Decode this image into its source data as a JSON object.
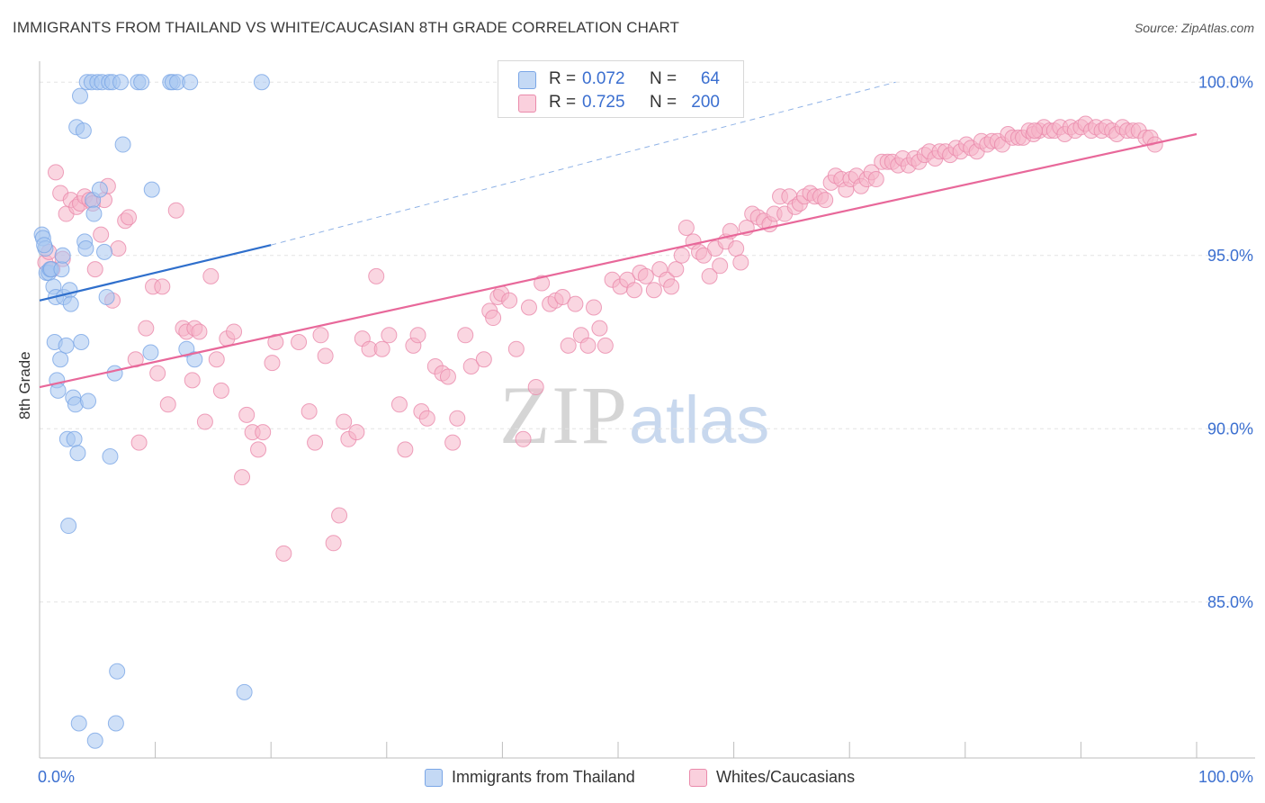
{
  "header": {
    "title": "IMMIGRANTS FROM THAILAND VS WHITE/CAUCASIAN 8TH GRADE CORRELATION CHART",
    "source": "Source: ZipAtlas.com"
  },
  "watermark": {
    "zip": "ZIP",
    "atlas": "atlas"
  },
  "legend": {
    "rows": [
      {
        "r_label": "R =",
        "r_value": "0.072",
        "n_label": "N =",
        "n_value": "64",
        "color": "#a7c6f0"
      },
      {
        "r_label": "R =",
        "r_value": "0.725",
        "n_label": "N =",
        "n_value": "200",
        "color": "#f6b5c9"
      }
    ]
  },
  "bottom_legend": {
    "items": [
      {
        "label": "Immigrants from Thailand",
        "color": "#a7c6f0"
      },
      {
        "label": "Whites/Caucasians",
        "color": "#f6b5c9"
      }
    ]
  },
  "chart_data": {
    "type": "scatter",
    "title": "IMMIGRANTS FROM THAILAND VS WHITE/CAUCASIAN 8TH GRADE CORRELATION CHART",
    "xlabel": "",
    "ylabel": "8th Grade",
    "xlim": [
      0,
      100
    ],
    "ylim": [
      80.5,
      100.5
    ],
    "x_tick_labels": [
      "0.0%",
      "100.0%"
    ],
    "y_ticks": [
      85,
      90,
      95,
      100
    ],
    "y_tick_labels": [
      "85.0%",
      "90.0%",
      "95.0%",
      "100.0%"
    ],
    "grid": true,
    "colors": {
      "thailand": "#7aa6e6",
      "thailand_fill": "#a7c6f0",
      "white": "#ea8aab",
      "white_fill": "#f6b5c9",
      "thailand_line": "#2f6fcc",
      "white_line": "#e8689a",
      "tick_label": "#3b6fd0"
    },
    "series": [
      {
        "name": "Immigrants from Thailand",
        "trend": {
          "x": [
            0,
            20
          ],
          "y": [
            93.7,
            95.3
          ],
          "dashed_to": {
            "x": [
              20,
              74
            ],
            "y": [
              95.3,
              100.0
            ]
          }
        },
        "points": [
          [
            0.2,
            95.6
          ],
          [
            0.3,
            95.5
          ],
          [
            0.5,
            95.2
          ],
          [
            0.6,
            94.5
          ],
          [
            0.8,
            94.5
          ],
          [
            0.9,
            94.6
          ],
          [
            1.0,
            94.6
          ],
          [
            1.2,
            94.1
          ],
          [
            1.3,
            92.5
          ],
          [
            1.4,
            93.8
          ],
          [
            1.5,
            91.4
          ],
          [
            1.6,
            91.1
          ],
          [
            1.8,
            92.0
          ],
          [
            1.9,
            94.6
          ],
          [
            2.0,
            95.0
          ],
          [
            2.1,
            93.8
          ],
          [
            2.3,
            92.4
          ],
          [
            2.4,
            89.7
          ],
          [
            2.5,
            87.2
          ],
          [
            2.6,
            94.0
          ],
          [
            2.7,
            93.6
          ],
          [
            2.9,
            90.9
          ],
          [
            3.0,
            89.7
          ],
          [
            3.1,
            90.7
          ],
          [
            3.2,
            98.7
          ],
          [
            3.3,
            89.3
          ],
          [
            3.4,
            81.5
          ],
          [
            3.5,
            99.6
          ],
          [
            3.6,
            92.5
          ],
          [
            3.8,
            98.6
          ],
          [
            3.9,
            95.4
          ],
          [
            4.0,
            95.2
          ],
          [
            4.1,
            100.0
          ],
          [
            4.2,
            90.8
          ],
          [
            4.5,
            100.0
          ],
          [
            4.6,
            96.6
          ],
          [
            4.7,
            96.2
          ],
          [
            4.8,
            81.0
          ],
          [
            5.0,
            100.0
          ],
          [
            5.2,
            96.9
          ],
          [
            5.4,
            100.0
          ],
          [
            5.6,
            95.1
          ],
          [
            5.8,
            93.8
          ],
          [
            6.0,
            100.0
          ],
          [
            6.1,
            89.2
          ],
          [
            6.3,
            100.0
          ],
          [
            6.5,
            91.6
          ],
          [
            6.6,
            81.5
          ],
          [
            6.7,
            83.0
          ],
          [
            7.0,
            100.0
          ],
          [
            7.2,
            98.2
          ],
          [
            8.5,
            100.0
          ],
          [
            8.8,
            100.0
          ],
          [
            9.6,
            92.2
          ],
          [
            9.7,
            96.9
          ],
          [
            11.3,
            100.0
          ],
          [
            11.5,
            100.0
          ],
          [
            11.9,
            100.0
          ],
          [
            12.7,
            92.3
          ],
          [
            13.0,
            100.0
          ],
          [
            13.4,
            92.0
          ],
          [
            17.7,
            82.4
          ],
          [
            19.2,
            100.0
          ],
          [
            0.4,
            95.3
          ]
        ]
      },
      {
        "name": "Whites/Caucasians",
        "trend": {
          "x": [
            0,
            100
          ],
          "y": [
            91.2,
            98.5
          ]
        },
        "points": [
          [
            0.5,
            94.8
          ],
          [
            0.8,
            95.1
          ],
          [
            1.1,
            94.6
          ],
          [
            1.4,
            97.4
          ],
          [
            1.8,
            96.8
          ],
          [
            2.0,
            94.9
          ],
          [
            2.3,
            96.2
          ],
          [
            2.7,
            96.6
          ],
          [
            3.2,
            96.4
          ],
          [
            3.5,
            96.5
          ],
          [
            3.9,
            96.7
          ],
          [
            4.3,
            96.6
          ],
          [
            4.6,
            96.5
          ],
          [
            4.8,
            94.6
          ],
          [
            5.3,
            95.6
          ],
          [
            5.6,
            96.6
          ],
          [
            5.9,
            97.0
          ],
          [
            6.3,
            93.7
          ],
          [
            6.8,
            95.2
          ],
          [
            7.4,
            96.0
          ],
          [
            7.7,
            96.1
          ],
          [
            8.3,
            92.0
          ],
          [
            8.6,
            89.6
          ],
          [
            9.2,
            92.9
          ],
          [
            9.8,
            94.1
          ],
          [
            10.2,
            91.6
          ],
          [
            10.6,
            94.1
          ],
          [
            11.1,
            90.7
          ],
          [
            11.8,
            96.3
          ],
          [
            12.4,
            92.9
          ],
          [
            12.7,
            92.8
          ],
          [
            13.2,
            91.4
          ],
          [
            13.4,
            92.9
          ],
          [
            13.8,
            92.8
          ],
          [
            14.3,
            90.2
          ],
          [
            14.8,
            94.4
          ],
          [
            15.3,
            92.0
          ],
          [
            15.7,
            91.1
          ],
          [
            16.2,
            92.6
          ],
          [
            16.8,
            92.8
          ],
          [
            17.5,
            88.6
          ],
          [
            17.9,
            90.4
          ],
          [
            18.4,
            89.9
          ],
          [
            18.9,
            89.4
          ],
          [
            19.3,
            89.9
          ],
          [
            20.1,
            91.9
          ],
          [
            20.4,
            92.5
          ],
          [
            21.1,
            86.4
          ],
          [
            22.4,
            92.5
          ],
          [
            23.3,
            90.5
          ],
          [
            23.8,
            89.6
          ],
          [
            24.3,
            92.7
          ],
          [
            24.7,
            92.1
          ],
          [
            25.4,
            86.7
          ],
          [
            25.9,
            87.5
          ],
          [
            26.3,
            90.2
          ],
          [
            26.7,
            89.7
          ],
          [
            27.4,
            89.9
          ],
          [
            27.9,
            92.6
          ],
          [
            28.5,
            92.3
          ],
          [
            29.1,
            94.4
          ],
          [
            29.6,
            92.3
          ],
          [
            30.2,
            92.7
          ],
          [
            31.1,
            90.7
          ],
          [
            31.6,
            89.4
          ],
          [
            32.3,
            92.4
          ],
          [
            32.7,
            92.7
          ],
          [
            33.0,
            90.5
          ],
          [
            33.5,
            90.3
          ],
          [
            34.2,
            91.8
          ],
          [
            34.8,
            91.6
          ],
          [
            35.3,
            91.5
          ],
          [
            35.7,
            89.6
          ],
          [
            36.1,
            90.3
          ],
          [
            36.8,
            92.7
          ],
          [
            37.3,
            91.8
          ],
          [
            38.4,
            92.0
          ],
          [
            38.9,
            93.4
          ],
          [
            39.2,
            93.2
          ],
          [
            39.6,
            93.8
          ],
          [
            39.9,
            93.9
          ],
          [
            40.6,
            93.7
          ],
          [
            41.2,
            92.3
          ],
          [
            41.8,
            89.7
          ],
          [
            42.3,
            93.5
          ],
          [
            42.9,
            91.2
          ],
          [
            43.4,
            94.2
          ],
          [
            44.1,
            93.6
          ],
          [
            44.6,
            93.7
          ],
          [
            45.2,
            93.8
          ],
          [
            45.7,
            92.4
          ],
          [
            46.3,
            93.6
          ],
          [
            46.8,
            92.7
          ],
          [
            47.4,
            92.4
          ],
          [
            47.9,
            93.5
          ],
          [
            48.4,
            92.9
          ],
          [
            48.9,
            92.4
          ],
          [
            49.5,
            94.3
          ],
          [
            50.2,
            94.1
          ],
          [
            50.8,
            94.3
          ],
          [
            51.4,
            94.0
          ],
          [
            51.9,
            94.5
          ],
          [
            52.4,
            94.4
          ],
          [
            53.1,
            94.0
          ],
          [
            53.6,
            94.6
          ],
          [
            54.2,
            94.3
          ],
          [
            54.6,
            94.1
          ],
          [
            55.0,
            94.6
          ],
          [
            55.5,
            95.0
          ],
          [
            55.9,
            95.8
          ],
          [
            56.5,
            95.4
          ],
          [
            57.0,
            95.1
          ],
          [
            57.4,
            95.0
          ],
          [
            57.9,
            94.4
          ],
          [
            58.4,
            95.2
          ],
          [
            58.8,
            94.7
          ],
          [
            59.3,
            95.4
          ],
          [
            59.7,
            95.7
          ],
          [
            60.2,
            95.2
          ],
          [
            60.6,
            94.8
          ],
          [
            61.1,
            95.8
          ],
          [
            61.6,
            96.2
          ],
          [
            62.1,
            96.1
          ],
          [
            62.6,
            96.0
          ],
          [
            63.1,
            95.9
          ],
          [
            63.5,
            96.2
          ],
          [
            64.0,
            96.7
          ],
          [
            64.4,
            96.2
          ],
          [
            64.8,
            96.7
          ],
          [
            65.3,
            96.4
          ],
          [
            65.7,
            96.5
          ],
          [
            66.1,
            96.7
          ],
          [
            66.6,
            96.8
          ],
          [
            67.0,
            96.7
          ],
          [
            67.5,
            96.7
          ],
          [
            67.9,
            96.6
          ],
          [
            68.4,
            97.1
          ],
          [
            68.8,
            97.3
          ],
          [
            69.3,
            97.2
          ],
          [
            69.7,
            96.9
          ],
          [
            70.1,
            97.2
          ],
          [
            70.6,
            97.3
          ],
          [
            71.0,
            97.0
          ],
          [
            71.5,
            97.2
          ],
          [
            71.9,
            97.4
          ],
          [
            72.3,
            97.2
          ],
          [
            72.8,
            97.7
          ],
          [
            73.3,
            97.7
          ],
          [
            73.7,
            97.7
          ],
          [
            74.2,
            97.6
          ],
          [
            74.6,
            97.8
          ],
          [
            75.1,
            97.6
          ],
          [
            75.6,
            97.8
          ],
          [
            76.0,
            97.7
          ],
          [
            76.5,
            97.9
          ],
          [
            76.9,
            98.0
          ],
          [
            77.4,
            97.8
          ],
          [
            77.8,
            98.0
          ],
          [
            78.3,
            98.0
          ],
          [
            78.7,
            97.9
          ],
          [
            79.2,
            98.1
          ],
          [
            79.6,
            98.0
          ],
          [
            80.1,
            98.2
          ],
          [
            80.5,
            98.1
          ],
          [
            81.0,
            98.0
          ],
          [
            81.4,
            98.3
          ],
          [
            81.9,
            98.2
          ],
          [
            82.3,
            98.3
          ],
          [
            82.8,
            98.3
          ],
          [
            83.2,
            98.2
          ],
          [
            83.7,
            98.5
          ],
          [
            84.1,
            98.4
          ],
          [
            84.6,
            98.4
          ],
          [
            85.0,
            98.4
          ],
          [
            85.5,
            98.6
          ],
          [
            85.9,
            98.5
          ],
          [
            86.4,
            98.6
          ],
          [
            86.8,
            98.7
          ],
          [
            87.3,
            98.6
          ],
          [
            87.7,
            98.6
          ],
          [
            88.2,
            98.7
          ],
          [
            88.6,
            98.5
          ],
          [
            89.1,
            98.7
          ],
          [
            89.5,
            98.6
          ],
          [
            90.0,
            98.7
          ],
          [
            90.4,
            98.8
          ],
          [
            90.9,
            98.6
          ],
          [
            91.3,
            98.7
          ],
          [
            91.8,
            98.6
          ],
          [
            92.2,
            98.7
          ],
          [
            92.7,
            98.6
          ],
          [
            93.1,
            98.5
          ],
          [
            93.6,
            98.7
          ],
          [
            94.0,
            98.6
          ],
          [
            94.5,
            98.6
          ],
          [
            95.0,
            98.6
          ],
          [
            95.6,
            98.4
          ],
          [
            96.0,
            98.4
          ],
          [
            96.4,
            98.2
          ],
          [
            86.0,
            98.6
          ]
        ]
      }
    ]
  }
}
